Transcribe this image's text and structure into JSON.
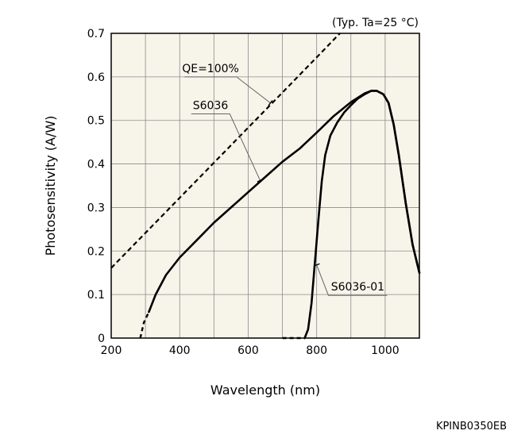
{
  "chart_data": {
    "type": "line",
    "condition_note": "(Typ. Ta=25 °C)",
    "xlabel": "Wavelength (nm)",
    "ylabel": "Photosensitivity (A/W)",
    "xlim": [
      200,
      1100
    ],
    "ylim": [
      0,
      0.7
    ],
    "x_ticks": [
      200,
      400,
      600,
      800,
      1000
    ],
    "y_ticks": [
      0,
      0.1,
      0.2,
      0.3,
      0.4,
      0.5,
      0.6,
      0.7
    ],
    "grid": true,
    "plot_background": "#f7f4ea",
    "series": [
      {
        "name": "QE=100%",
        "style": "dashed",
        "points": [
          [
            200,
            0.161
          ],
          [
            700,
            0.564
          ],
          [
            820,
            0.661
          ],
          [
            853,
            0.688
          ],
          [
            868,
            0.7
          ]
        ]
      },
      {
        "name": "S6036",
        "style": "solid",
        "dashed_start": [
          [
            285,
            0
          ],
          [
            295,
            0.035
          ],
          [
            310,
            0.06
          ]
        ],
        "points": [
          [
            310,
            0.06
          ],
          [
            330,
            0.1
          ],
          [
            360,
            0.145
          ],
          [
            400,
            0.185
          ],
          [
            450,
            0.225
          ],
          [
            500,
            0.265
          ],
          [
            550,
            0.3
          ],
          [
            600,
            0.335
          ],
          [
            650,
            0.37
          ],
          [
            700,
            0.405
          ],
          [
            750,
            0.435
          ],
          [
            800,
            0.472
          ],
          [
            850,
            0.51
          ],
          [
            900,
            0.542
          ],
          [
            940,
            0.562
          ],
          [
            960,
            0.568
          ],
          [
            975,
            0.568
          ],
          [
            995,
            0.56
          ],
          [
            1010,
            0.54
          ],
          [
            1025,
            0.49
          ],
          [
            1040,
            0.42
          ],
          [
            1060,
            0.31
          ],
          [
            1080,
            0.215
          ],
          [
            1100,
            0.15
          ]
        ]
      },
      {
        "name": "S6036-01",
        "style": "solid",
        "dashed_start": [
          [
            700,
            0
          ],
          [
            745,
            0
          ],
          [
            765,
            0
          ]
        ],
        "points": [
          [
            765,
            0
          ],
          [
            775,
            0.02
          ],
          [
            785,
            0.08
          ],
          [
            795,
            0.175
          ],
          [
            805,
            0.27
          ],
          [
            815,
            0.36
          ],
          [
            825,
            0.42
          ],
          [
            840,
            0.465
          ],
          [
            860,
            0.495
          ],
          [
            880,
            0.518
          ],
          [
            900,
            0.535
          ],
          [
            920,
            0.55
          ],
          [
            940,
            0.56
          ],
          [
            960,
            0.568
          ],
          [
            975,
            0.568
          ],
          [
            995,
            0.56
          ],
          [
            1010,
            0.54
          ],
          [
            1025,
            0.49
          ],
          [
            1040,
            0.42
          ],
          [
            1060,
            0.31
          ],
          [
            1080,
            0.215
          ],
          [
            1100,
            0.15
          ]
        ]
      }
    ],
    "annotations": [
      {
        "text": "QE=100%",
        "label_at": [
          490,
          0.6
        ],
        "arrow_to": [
          665,
          0.54
        ]
      },
      {
        "text": "S6036",
        "label_at": [
          490,
          0.515
        ],
        "arrow_to": [
          635,
          0.362
        ]
      },
      {
        "text": "S6036-01",
        "label_at": [
          920,
          0.098
        ],
        "arrow_to": [
          800,
          0.168
        ]
      }
    ]
  },
  "footer": {
    "code": "KPINB0350EB"
  }
}
